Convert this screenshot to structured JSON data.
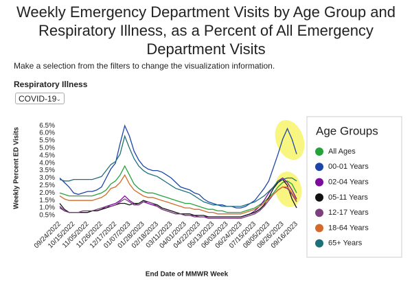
{
  "page": {
    "subtitle": "Make a selection from the filters to change the visualization information.",
    "filter_label": "Respiratory Illness",
    "filter_value": "COVID-19"
  },
  "chart_data": {
    "type": "line",
    "title": "Weekly Emergency Department Visits by Age Group and Respiratory Illness, as a Percent of All Emergency Department Visits",
    "x_label": "End Date of MMWR Week",
    "y_label": "Weekly Percent ED Visits",
    "legend_title": "Age Groups",
    "legend": "right",
    "categories": [
      "09/24/2022",
      null,
      null,
      "10/15/2022",
      null,
      null,
      "11/05/2022",
      null,
      null,
      "11/26/2022",
      null,
      null,
      "12/17/2022",
      null,
      null,
      "01/07/2023",
      null,
      null,
      "01/28/2023",
      null,
      null,
      "02/18/2023",
      null,
      null,
      "03/11/2023",
      null,
      null,
      "04/01/2023",
      null,
      null,
      "04/22/2023",
      null,
      null,
      "05/13/2023",
      null,
      null,
      "06/03/2023",
      null,
      null,
      "06/24/2023",
      null,
      null,
      "07/15/2023",
      null,
      null,
      "08/05/2023",
      null,
      null,
      "08/26/2023",
      null,
      null,
      "09/16/2023"
    ],
    "ylim": [
      0.2,
      6.6
    ],
    "yticks": [
      {
        "value": 0.5,
        "label": "0.5%"
      },
      {
        "value": 1.0,
        "label": "1.0%"
      },
      {
        "value": 1.5,
        "label": "1.5%"
      },
      {
        "value": 2.0,
        "label": "2.0%"
      },
      {
        "value": 2.5,
        "label": "2.5%"
      },
      {
        "value": 3.0,
        "label": "3.0%"
      },
      {
        "value": 3.5,
        "label": "3.5%"
      },
      {
        "value": 4.0,
        "label": "4.0%"
      },
      {
        "value": 4.5,
        "label": "4.5%"
      },
      {
        "value": 5.0,
        "label": "5.0%"
      },
      {
        "value": 5.5,
        "label": "5.5%"
      },
      {
        "value": 6.0,
        "label": "6.0%"
      },
      {
        "value": 6.5,
        "label": "6.5%"
      }
    ],
    "series": [
      {
        "name": "All Ages",
        "color": "#23a33a",
        "values": [
          2.0,
          1.9,
          1.8,
          1.8,
          1.8,
          1.8,
          1.8,
          1.8,
          1.9,
          2.0,
          2.2,
          2.6,
          2.8,
          3.2,
          3.8,
          3.2,
          2.6,
          2.3,
          2.1,
          2.0,
          2.0,
          1.9,
          1.8,
          1.7,
          1.6,
          1.5,
          1.4,
          1.3,
          1.3,
          1.2,
          1.1,
          1.0,
          0.9,
          0.9,
          0.8,
          0.8,
          0.7,
          0.7,
          0.7,
          0.7,
          0.8,
          0.9,
          1.0,
          1.2,
          1.4,
          1.7,
          2.0,
          2.4,
          2.7,
          2.8,
          2.6,
          2.0
        ]
      },
      {
        "name": "00-01 Years",
        "color": "#1c45a8",
        "values": [
          3.0,
          2.7,
          2.4,
          2.0,
          1.9,
          2.0,
          2.1,
          2.1,
          2.2,
          2.4,
          3.0,
          3.6,
          4.0,
          5.3,
          6.5,
          5.8,
          4.8,
          4.2,
          3.8,
          3.6,
          3.5,
          3.5,
          3.4,
          3.2,
          3.0,
          2.7,
          2.4,
          2.3,
          2.2,
          2.0,
          1.9,
          1.6,
          1.4,
          1.3,
          1.2,
          1.2,
          1.1,
          1.1,
          1.0,
          1.0,
          1.1,
          1.3,
          1.5,
          1.9,
          2.3,
          2.8,
          3.7,
          4.6,
          5.6,
          6.3,
          5.6,
          4.6
        ]
      },
      {
        "name": "02-04 Years",
        "color": "#7b0c9c",
        "values": [
          1.1,
          0.8,
          0.7,
          0.7,
          0.7,
          0.7,
          0.7,
          0.8,
          0.8,
          0.9,
          1.1,
          1.2,
          1.3,
          1.5,
          1.8,
          1.5,
          1.3,
          1.2,
          1.4,
          1.3,
          1.2,
          1.1,
          0.9,
          0.8,
          0.7,
          0.6,
          0.6,
          0.5,
          0.5,
          0.5,
          0.4,
          0.4,
          0.4,
          0.4,
          0.4,
          0.4,
          0.4,
          0.4,
          0.4,
          0.4,
          0.5,
          0.6,
          0.8,
          1.1,
          1.5,
          2.0,
          2.4,
          2.8,
          3.0,
          2.7,
          2.2,
          1.6
        ]
      },
      {
        "name": "05-11 Years",
        "color": "#111111",
        "values": [
          1.3,
          0.9,
          0.7,
          0.7,
          0.7,
          0.7,
          0.7,
          0.8,
          0.8,
          0.9,
          1.0,
          1.1,
          1.2,
          1.3,
          1.3,
          1.2,
          1.3,
          1.3,
          1.5,
          1.4,
          1.3,
          1.2,
          1.0,
          0.9,
          0.8,
          0.7,
          0.6,
          0.6,
          0.6,
          0.5,
          0.5,
          0.5,
          0.4,
          0.4,
          0.4,
          0.4,
          0.4,
          0.4,
          0.4,
          0.4,
          0.5,
          0.6,
          0.7,
          0.9,
          1.2,
          1.7,
          2.3,
          2.7,
          2.9,
          2.5,
          1.6,
          1.0
        ]
      },
      {
        "name": "12-17 Years",
        "color": "#7e3f7e",
        "values": [
          1.0,
          0.8,
          0.7,
          0.7,
          0.7,
          0.8,
          0.8,
          0.8,
          0.9,
          1.0,
          1.1,
          1.1,
          1.2,
          1.4,
          1.6,
          1.4,
          1.2,
          1.2,
          1.4,
          1.4,
          1.3,
          1.1,
          0.9,
          0.8,
          0.7,
          0.6,
          0.6,
          0.5,
          0.5,
          0.4,
          0.4,
          0.4,
          0.3,
          0.3,
          0.3,
          0.3,
          0.3,
          0.3,
          0.3,
          0.3,
          0.4,
          0.5,
          0.6,
          0.8,
          1.1,
          1.5,
          1.9,
          2.2,
          2.4,
          2.3,
          1.9,
          1.4
        ]
      },
      {
        "name": "18-64 Years",
        "color": "#d4692a",
        "values": [
          1.8,
          1.6,
          1.5,
          1.5,
          1.5,
          1.5,
          1.5,
          1.5,
          1.6,
          1.7,
          1.9,
          2.3,
          2.4,
          2.7,
          3.2,
          2.6,
          2.2,
          2.0,
          1.8,
          1.7,
          1.7,
          1.6,
          1.5,
          1.4,
          1.3,
          1.2,
          1.1,
          1.0,
          1.0,
          0.9,
          0.9,
          0.8,
          0.7,
          0.7,
          0.6,
          0.6,
          0.6,
          0.6,
          0.6,
          0.6,
          0.7,
          0.8,
          0.9,
          1.1,
          1.3,
          1.6,
          1.9,
          2.2,
          2.4,
          2.4,
          2.0,
          1.5
        ]
      },
      {
        "name": "65+ Years",
        "color": "#1d6f7a",
        "values": [
          2.9,
          2.8,
          2.8,
          2.9,
          2.9,
          2.9,
          2.9,
          2.9,
          3.0,
          3.1,
          3.5,
          3.9,
          4.1,
          4.6,
          5.8,
          5.0,
          4.3,
          3.8,
          3.5,
          3.3,
          3.2,
          3.1,
          2.9,
          2.7,
          2.5,
          2.3,
          2.2,
          2.1,
          2.0,
          1.8,
          1.6,
          1.4,
          1.3,
          1.2,
          1.2,
          1.1,
          1.1,
          1.1,
          1.1,
          1.1,
          1.2,
          1.3,
          1.4,
          1.6,
          1.8,
          2.1,
          2.4,
          2.8,
          2.9,
          3.0,
          3.0,
          2.8
        ]
      }
    ]
  }
}
